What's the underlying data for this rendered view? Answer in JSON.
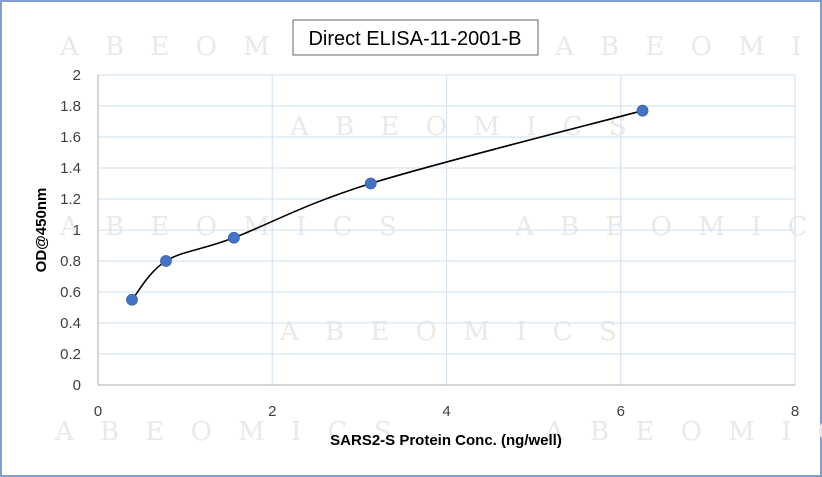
{
  "colors": {
    "frame": "#7f9fce",
    "grid": "#d9e6f2",
    "axis": "#bfbfbf",
    "line": "#000000",
    "marker": "#4472c4",
    "watermark": "#e9e9e9"
  },
  "watermark": {
    "text": "ABEOMICS"
  },
  "chart_data": {
    "type": "scatter",
    "title": "Direct ELISA-11-2001-B",
    "xlabel": "SARS2-S Protein Conc. (ng/well)",
    "ylabel": "OD@450nm",
    "xlim": [
      0,
      8
    ],
    "ylim": [
      0,
      2
    ],
    "x_ticks": [
      0,
      2,
      4,
      6,
      8
    ],
    "y_ticks": [
      "0",
      "0.2",
      "0.4",
      "0.6",
      "0.8",
      "1",
      "1.2",
      "1.4",
      "1.6",
      "1.8",
      "2"
    ],
    "grid": true,
    "legend": "none",
    "series": [
      {
        "x": [
          0.39,
          0.78,
          1.56,
          3.13,
          6.25
        ],
        "y": [
          0.55,
          0.8,
          0.95,
          1.3,
          1.77
        ],
        "lines": "smoothed",
        "markers": "circle"
      }
    ]
  }
}
